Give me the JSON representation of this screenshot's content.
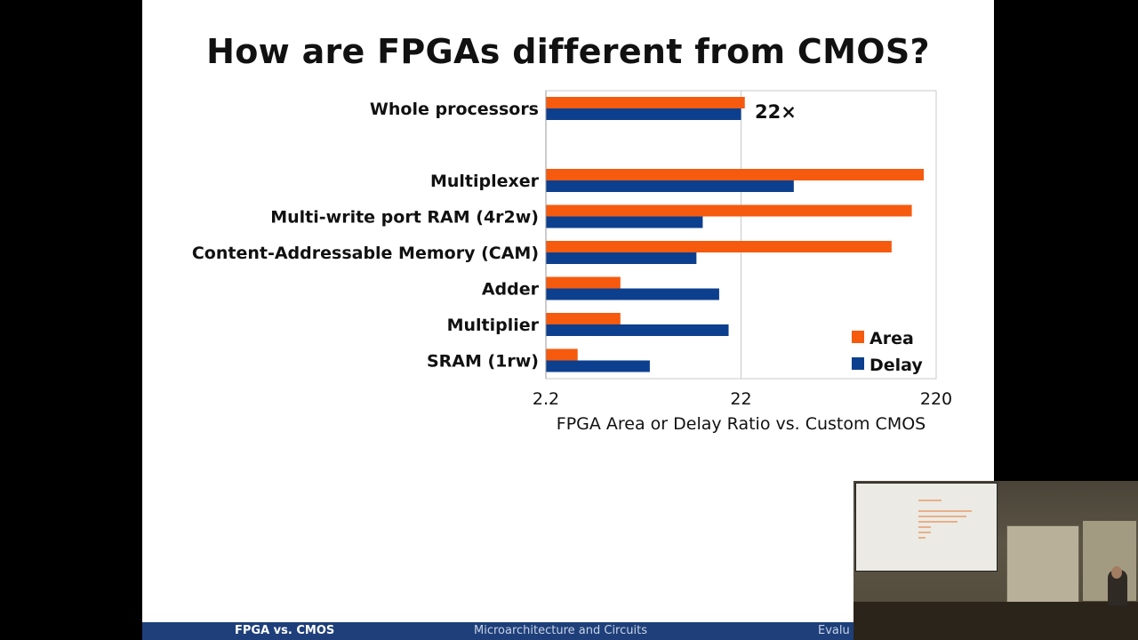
{
  "slide": {
    "title": "How are FPGAs different from CMOS?",
    "footer": {
      "left": "FPGA vs. CMOS",
      "middle": "Microarchitecture and Circuits",
      "right": "Evalu"
    }
  },
  "chart_data": {
    "type": "bar",
    "orientation": "horizontal",
    "x_scale": "log",
    "xlim": [
      2.2,
      220
    ],
    "x_ticks": [
      "2.2",
      "22",
      "220"
    ],
    "xlabel": "FPGA Area or Delay Ratio vs. Custom CMOS",
    "ylabel": "",
    "grid": true,
    "legend_position": "bottom-right",
    "categories": [
      "Whole processors",
      "",
      "Multiplexer",
      "Multi-write port RAM (4r2w)",
      "Content-Addressable Memory (CAM)",
      "Adder",
      "Multiplier",
      "SRAM (1rw)"
    ],
    "series": [
      {
        "name": "Area",
        "color": "#f55a0e",
        "values": [
          23,
          null,
          190,
          165,
          130,
          5.3,
          5.3,
          3.2
        ]
      },
      {
        "name": "Delay",
        "color": "#0d3f8f",
        "values": [
          22,
          null,
          41,
          14,
          13,
          17,
          19,
          7.5
        ]
      }
    ],
    "annotations": [
      {
        "text": "22×",
        "category": "Whole processors"
      }
    ]
  }
}
